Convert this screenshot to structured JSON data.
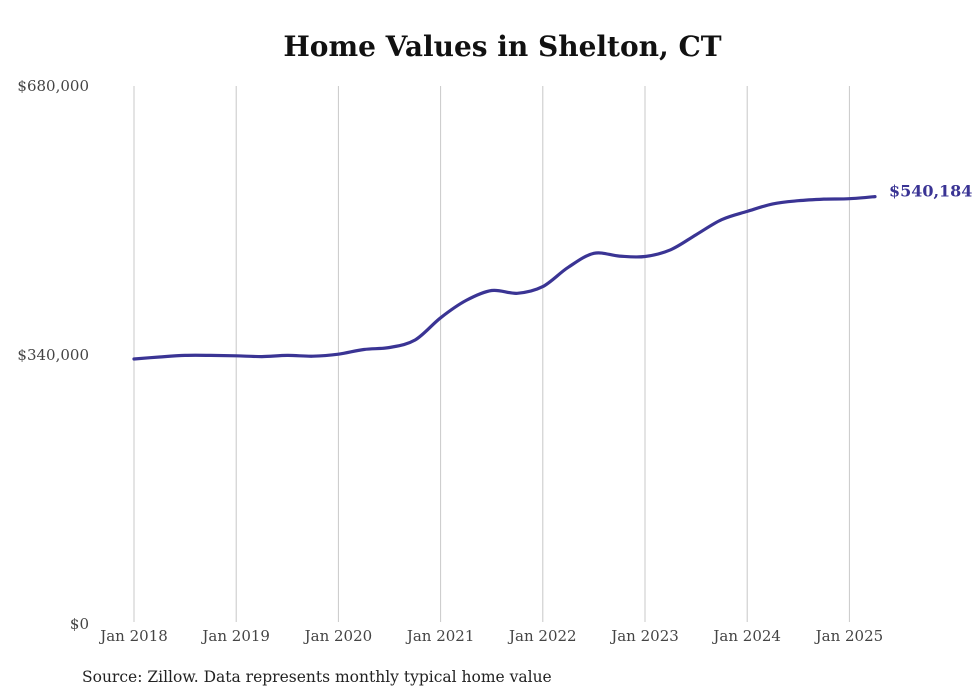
{
  "chart_data": {
    "type": "line",
    "title": "Home Values in Shelton, CT",
    "source": "Source: Zillow. Data represents monthly typical home value",
    "ylim": [
      0,
      680000
    ],
    "y_ticks": [
      {
        "value": 0,
        "label": "$0"
      },
      {
        "value": 340000,
        "label": "$340,000"
      },
      {
        "value": 680000,
        "label": "$680,000"
      }
    ],
    "x_ticks": [
      "Jan 2018",
      "Jan 2019",
      "Jan 2020",
      "Jan 2021",
      "Jan 2022",
      "Jan 2023",
      "Jan 2024",
      "Jan 2025"
    ],
    "x_tick_years": [
      2018,
      2019,
      2020,
      2021,
      2022,
      2023,
      2024,
      2025
    ],
    "grid": "vertical",
    "line_color": "#3a3494",
    "end_label": "$540,184",
    "series": [
      {
        "values": [
          [
            2018.0,
            335000
          ],
          [
            2018.25,
            337500
          ],
          [
            2018.5,
            339500
          ],
          [
            2018.75,
            339500
          ],
          [
            2019.0,
            339000
          ],
          [
            2019.25,
            338000
          ],
          [
            2019.5,
            339500
          ],
          [
            2019.75,
            338500
          ],
          [
            2020.0,
            341000
          ],
          [
            2020.25,
            347000
          ],
          [
            2020.5,
            349500
          ],
          [
            2020.75,
            359000
          ],
          [
            2021.0,
            387000
          ],
          [
            2021.25,
            409000
          ],
          [
            2021.5,
            421500
          ],
          [
            2021.75,
            418000
          ],
          [
            2022.0,
            426500
          ],
          [
            2022.25,
            451000
          ],
          [
            2022.5,
            468500
          ],
          [
            2022.75,
            465000
          ],
          [
            2023.0,
            464500
          ],
          [
            2023.25,
            473000
          ],
          [
            2023.5,
            492000
          ],
          [
            2023.75,
            511000
          ],
          [
            2024.0,
            521500
          ],
          [
            2024.25,
            531000
          ],
          [
            2024.5,
            535000
          ],
          [
            2024.75,
            537000
          ],
          [
            2025.0,
            537500
          ],
          [
            2025.25,
            540184
          ]
        ]
      }
    ]
  }
}
